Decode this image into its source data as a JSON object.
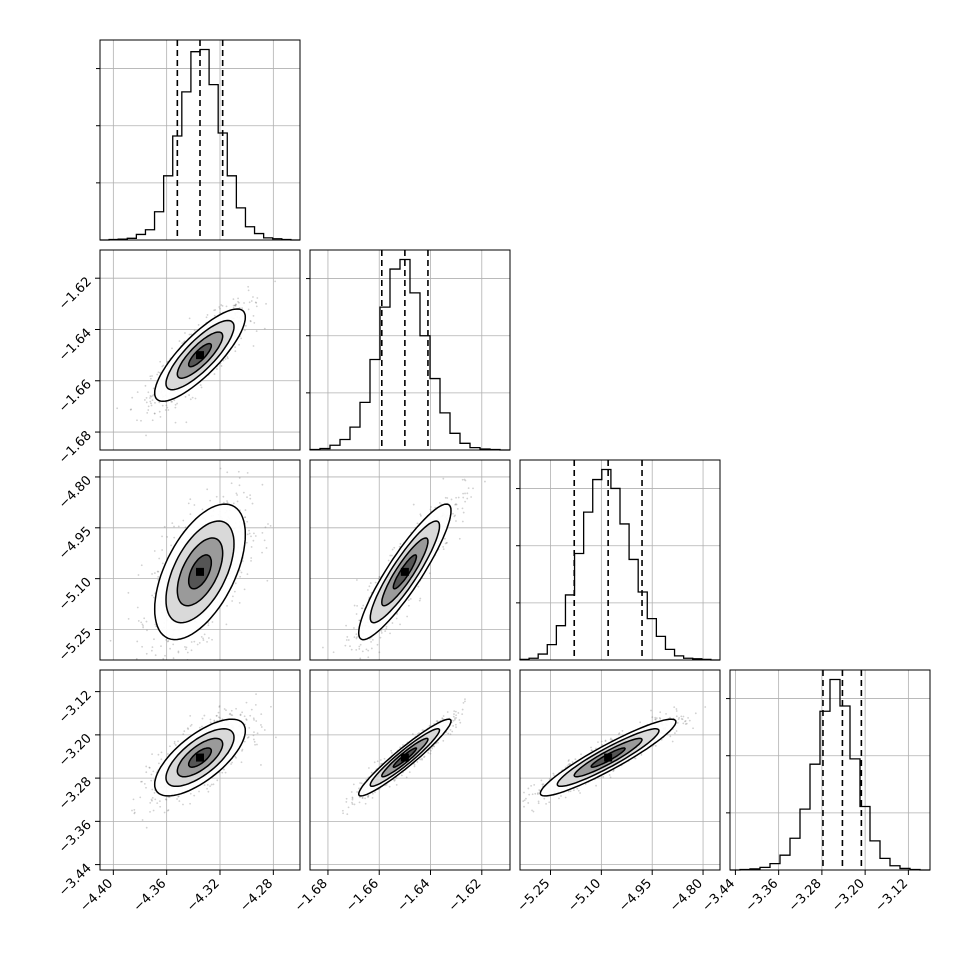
{
  "chart_data": {
    "type": "corner",
    "title": "",
    "grid": true,
    "colors": {
      "line": "#000000",
      "grid": "#b0b0b0",
      "points": "#7a7a7a",
      "panel_border": "#000000"
    },
    "parameters": [
      {
        "range": [
          -4.41,
          -4.26
        ],
        "ticks": [
          -4.4,
          -4.36,
          -4.32,
          -4.28
        ],
        "tick_labels": [
          "−4.40",
          "−4.36",
          "−4.32",
          "−4.28"
        ],
        "quantiles": [
          -4.352,
          -4.335,
          -4.318
        ],
        "hist_bins": [
          0,
          1,
          2,
          4,
          13,
          24,
          66,
          150,
          243,
          346,
          440,
          445,
          363,
          250,
          150,
          75,
          31,
          15,
          5,
          3,
          1,
          0
        ]
      },
      {
        "range": [
          -1.687,
          -1.609
        ],
        "ticks": [
          -1.68,
          -1.66,
          -1.64,
          -1.62
        ],
        "tick_labels": [
          "−1.68",
          "−1.66",
          "−1.64",
          "−1.62"
        ],
        "quantiles": [
          -1.659,
          -1.65,
          -1.641
        ],
        "hist_bins": [
          1,
          3,
          10,
          22,
          48,
          100,
          190,
          300,
          380,
          400,
          330,
          240,
          150,
          78,
          35,
          14,
          5,
          2,
          1,
          0
        ]
      },
      {
        "range": [
          -5.34,
          -4.75
        ],
        "ticks": [
          -5.25,
          -5.1,
          -4.95,
          -4.8
        ],
        "tick_labels": [
          "−5.25",
          "−5.10",
          "−4.95",
          "−4.80"
        ],
        "quantiles": [
          -5.18,
          -5.08,
          -4.98
        ],
        "hist_bins": [
          1,
          3,
          10,
          26,
          58,
          110,
          180,
          250,
          305,
          322,
          290,
          230,
          170,
          115,
          70,
          40,
          18,
          7,
          3,
          2,
          1,
          0
        ]
      },
      {
        "range": [
          -3.45,
          -3.08
        ],
        "ticks": [
          -3.44,
          -3.36,
          -3.28,
          -3.2,
          -3.12
        ],
        "tick_labels": [
          "−3.44",
          "−3.36",
          "−3.28",
          "−3.20",
          "−3.12"
        ],
        "quantiles": [
          -3.278,
          -3.242,
          -3.207
        ],
        "hist_bins": [
          0,
          1,
          2,
          5,
          12,
          28,
          60,
          115,
          200,
          300,
          360,
          310,
          210,
          120,
          55,
          22,
          8,
          3,
          1,
          0
        ]
      }
    ],
    "correlations": [
      [
        1,
        0.82,
        0.55,
        0.7
      ],
      [
        0.82,
        1,
        0.9,
        0.95
      ],
      [
        0.55,
        0.9,
        1,
        0.93
      ],
      [
        0.7,
        0.95,
        0.93,
        1
      ]
    ],
    "contour_levels_sigma": [
      0.5,
      1.0,
      1.5,
      2.0
    ]
  }
}
